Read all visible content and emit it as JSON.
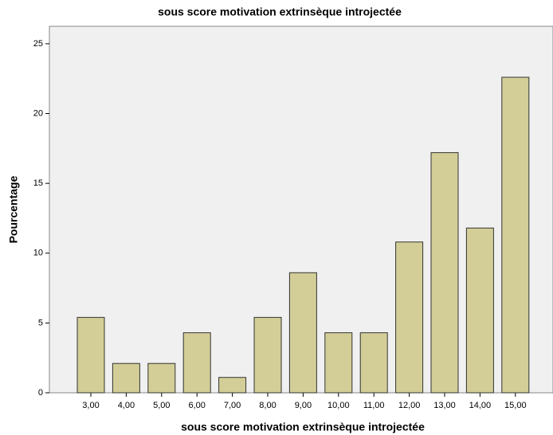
{
  "chart_data": {
    "type": "bar",
    "title": "sous score motivation extrinsèque introjectée",
    "x_label": "sous score motivation extrinsèque introjectée",
    "y_label": "Pourcentage",
    "categories": [
      "3,00",
      "4,00",
      "5,00",
      "6,00",
      "7,00",
      "8,00",
      "9,00",
      "10,00",
      "11,00",
      "12,00",
      "13,00",
      "14,00",
      "15,00"
    ],
    "values": [
      5.4,
      2.1,
      2.1,
      4.3,
      1.1,
      5.4,
      8.6,
      4.3,
      4.3,
      10.8,
      17.2,
      11.8,
      22.6
    ],
    "color": "#d3ce97",
    "ylim": [
      0,
      26.25
    ],
    "yticks": [
      0,
      5,
      10,
      15,
      20,
      25
    ],
    "grid": false
  }
}
